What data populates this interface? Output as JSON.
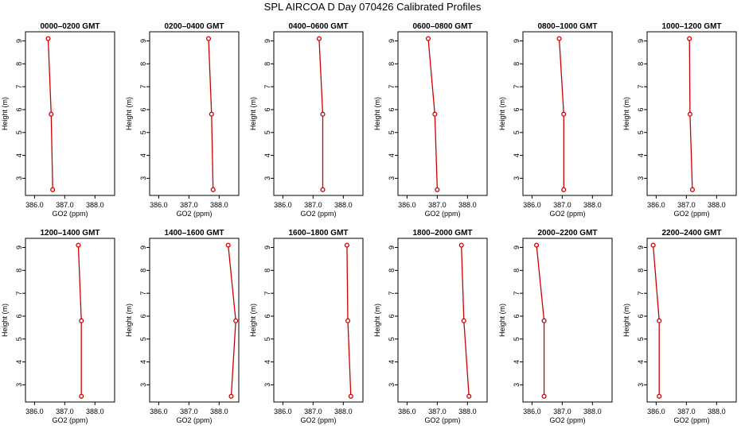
{
  "title": "SPL AIRCOA D  Day 070426  Calibrated Profiles",
  "colors": {
    "series": "#cc0000",
    "axis": "#000000",
    "background": "#ffffff"
  },
  "chart_data": [
    {
      "type": "line",
      "title": "0000–0200 GMT",
      "xlabel": "GO2 (ppm)",
      "ylabel": "Height (m)",
      "xlim": [
        385.7,
        388.65
      ],
      "ylim": [
        2.25,
        9.4
      ],
      "xticks": [
        "386.0",
        "387.0",
        "388.0"
      ],
      "xtick_values": [
        386.0,
        387.0,
        388.0
      ],
      "yticks": [
        "3",
        "4",
        "5",
        "6",
        "7",
        "8",
        "9"
      ],
      "ytick_values": [
        3,
        4,
        5,
        6,
        7,
        8,
        9
      ],
      "grid": false,
      "points": [
        {
          "x": 386.45,
          "y": 9.1
        },
        {
          "x": 386.55,
          "y": 5.8
        },
        {
          "x": 386.6,
          "y": 2.5
        }
      ]
    },
    {
      "type": "line",
      "title": "0200–0400 GMT",
      "xlabel": "GO2 (ppm)",
      "ylabel": "Height (m)",
      "xlim": [
        385.7,
        388.65
      ],
      "ylim": [
        2.25,
        9.4
      ],
      "xticks": [
        "386.0",
        "387.0",
        "388.0"
      ],
      "xtick_values": [
        386.0,
        387.0,
        388.0
      ],
      "yticks": [
        "3",
        "4",
        "5",
        "6",
        "7",
        "8",
        "9"
      ],
      "ytick_values": [
        3,
        4,
        5,
        6,
        7,
        8,
        9
      ],
      "grid": false,
      "points": [
        {
          "x": 387.65,
          "y": 9.1
        },
        {
          "x": 387.75,
          "y": 5.8
        },
        {
          "x": 387.8,
          "y": 2.5
        }
      ]
    },
    {
      "type": "line",
      "title": "0400–0600 GMT",
      "xlabel": "GO2 (ppm)",
      "ylabel": "Height (m)",
      "xlim": [
        385.7,
        388.65
      ],
      "ylim": [
        2.25,
        9.4
      ],
      "xticks": [
        "386.0",
        "387.0",
        "388.0"
      ],
      "xtick_values": [
        386.0,
        387.0,
        388.0
      ],
      "yticks": [
        "3",
        "4",
        "5",
        "6",
        "7",
        "8",
        "9"
      ],
      "ytick_values": [
        3,
        4,
        5,
        6,
        7,
        8,
        9
      ],
      "grid": false,
      "points": [
        {
          "x": 387.2,
          "y": 9.1
        },
        {
          "x": 387.32,
          "y": 5.8
        },
        {
          "x": 387.32,
          "y": 2.5
        }
      ]
    },
    {
      "type": "line",
      "title": "0600–0800 GMT",
      "xlabel": "GO2 (ppm)",
      "ylabel": "Height (m)",
      "xlim": [
        385.7,
        388.65
      ],
      "ylim": [
        2.25,
        9.4
      ],
      "xticks": [
        "386.0",
        "387.0",
        "388.0"
      ],
      "xtick_values": [
        386.0,
        387.0,
        388.0
      ],
      "yticks": [
        "3",
        "4",
        "5",
        "6",
        "7",
        "8",
        "9"
      ],
      "ytick_values": [
        3,
        4,
        5,
        6,
        7,
        8,
        9
      ],
      "grid": false,
      "points": [
        {
          "x": 386.7,
          "y": 9.1
        },
        {
          "x": 386.92,
          "y": 5.8
        },
        {
          "x": 387.0,
          "y": 2.5
        }
      ]
    },
    {
      "type": "line",
      "title": "0800–1000 GMT",
      "xlabel": "GO2 (ppm)",
      "ylabel": "Height (m)",
      "xlim": [
        385.7,
        388.65
      ],
      "ylim": [
        2.25,
        9.4
      ],
      "xticks": [
        "386.0",
        "387.0",
        "388.0"
      ],
      "xtick_values": [
        386.0,
        387.0,
        388.0
      ],
      "yticks": [
        "3",
        "4",
        "5",
        "6",
        "7",
        "8",
        "9"
      ],
      "ytick_values": [
        3,
        4,
        5,
        6,
        7,
        8,
        9
      ],
      "grid": false,
      "points": [
        {
          "x": 386.9,
          "y": 9.1
        },
        {
          "x": 387.05,
          "y": 5.8
        },
        {
          "x": 387.05,
          "y": 2.5
        }
      ]
    },
    {
      "type": "line",
      "title": "1000–1200 GMT",
      "xlabel": "GO2 (ppm)",
      "ylabel": "Height (m)",
      "xlim": [
        385.7,
        388.65
      ],
      "ylim": [
        2.25,
        9.4
      ],
      "xticks": [
        "386.0",
        "387.0",
        "388.0"
      ],
      "xtick_values": [
        386.0,
        387.0,
        388.0
      ],
      "yticks": [
        "3",
        "4",
        "5",
        "6",
        "7",
        "8",
        "9"
      ],
      "ytick_values": [
        3,
        4,
        5,
        6,
        7,
        8,
        9
      ],
      "grid": false,
      "points": [
        {
          "x": 387.1,
          "y": 9.1
        },
        {
          "x": 387.12,
          "y": 5.8
        },
        {
          "x": 387.2,
          "y": 2.5
        }
      ]
    },
    {
      "type": "line",
      "title": "1200–1400 GMT",
      "xlabel": "GO2 (ppm)",
      "ylabel": "Height (m)",
      "xlim": [
        385.7,
        388.65
      ],
      "ylim": [
        2.25,
        9.4
      ],
      "xticks": [
        "386.0",
        "387.0",
        "388.0"
      ],
      "xtick_values": [
        386.0,
        387.0,
        388.0
      ],
      "yticks": [
        "3",
        "4",
        "5",
        "6",
        "7",
        "8",
        "9"
      ],
      "ytick_values": [
        3,
        4,
        5,
        6,
        7,
        8,
        9
      ],
      "grid": false,
      "points": [
        {
          "x": 387.45,
          "y": 9.1
        },
        {
          "x": 387.55,
          "y": 5.8
        },
        {
          "x": 387.55,
          "y": 2.5
        }
      ]
    },
    {
      "type": "line",
      "title": "1400–1600 GMT",
      "xlabel": "GO2 (ppm)",
      "ylabel": "Height (m)",
      "xlim": [
        385.7,
        388.65
      ],
      "ylim": [
        2.25,
        9.4
      ],
      "xticks": [
        "386.0",
        "387.0",
        "388.0"
      ],
      "xtick_values": [
        386.0,
        387.0,
        388.0
      ],
      "yticks": [
        "3",
        "4",
        "5",
        "6",
        "7",
        "8",
        "9"
      ],
      "ytick_values": [
        3,
        4,
        5,
        6,
        7,
        8,
        9
      ],
      "grid": false,
      "points": [
        {
          "x": 388.3,
          "y": 9.1
        },
        {
          "x": 388.55,
          "y": 5.8
        },
        {
          "x": 388.4,
          "y": 2.5
        }
      ]
    },
    {
      "type": "line",
      "title": "1600–1800 GMT",
      "xlabel": "GO2 (ppm)",
      "ylabel": "Height (m)",
      "xlim": [
        385.7,
        388.65
      ],
      "ylim": [
        2.25,
        9.4
      ],
      "xticks": [
        "386.0",
        "387.0",
        "388.0"
      ],
      "xtick_values": [
        386.0,
        387.0,
        388.0
      ],
      "yticks": [
        "3",
        "4",
        "5",
        "6",
        "7",
        "8",
        "9"
      ],
      "ytick_values": [
        3,
        4,
        5,
        6,
        7,
        8,
        9
      ],
      "grid": false,
      "points": [
        {
          "x": 388.12,
          "y": 9.1
        },
        {
          "x": 388.15,
          "y": 5.8
        },
        {
          "x": 388.25,
          "y": 2.5
        }
      ]
    },
    {
      "type": "line",
      "title": "1800–2000 GMT",
      "xlabel": "GO2 (ppm)",
      "ylabel": "Height (m)",
      "xlim": [
        385.7,
        388.65
      ],
      "ylim": [
        2.25,
        9.4
      ],
      "xticks": [
        "386.0",
        "387.0",
        "388.0"
      ],
      "xtick_values": [
        386.0,
        387.0,
        388.0
      ],
      "yticks": [
        "3",
        "4",
        "5",
        "6",
        "7",
        "8",
        "9"
      ],
      "ytick_values": [
        3,
        4,
        5,
        6,
        7,
        8,
        9
      ],
      "grid": false,
      "points": [
        {
          "x": 387.8,
          "y": 9.1
        },
        {
          "x": 387.88,
          "y": 5.8
        },
        {
          "x": 388.05,
          "y": 2.5
        }
      ]
    },
    {
      "type": "line",
      "title": "2000–2200 GMT",
      "xlabel": "GO2 (ppm)",
      "ylabel": "Height (m)",
      "xlim": [
        385.7,
        388.65
      ],
      "ylim": [
        2.25,
        9.4
      ],
      "xticks": [
        "386.0",
        "387.0",
        "388.0"
      ],
      "xtick_values": [
        386.0,
        387.0,
        388.0
      ],
      "yticks": [
        "3",
        "4",
        "5",
        "6",
        "7",
        "8",
        "9"
      ],
      "ytick_values": [
        3,
        4,
        5,
        6,
        7,
        8,
        9
      ],
      "grid": false,
      "points": [
        {
          "x": 386.15,
          "y": 9.1
        },
        {
          "x": 386.4,
          "y": 5.8
        },
        {
          "x": 386.4,
          "y": 2.5
        }
      ]
    },
    {
      "type": "line",
      "title": "2200–2400 GMT",
      "xlabel": "GO2 (ppm)",
      "ylabel": "Height (m)",
      "xlim": [
        385.7,
        388.65
      ],
      "ylim": [
        2.25,
        9.4
      ],
      "xticks": [
        "386.0",
        "387.0",
        "388.0"
      ],
      "xtick_values": [
        386.0,
        387.0,
        388.0
      ],
      "yticks": [
        "3",
        "4",
        "5",
        "6",
        "7",
        "8",
        "9"
      ],
      "ytick_values": [
        3,
        4,
        5,
        6,
        7,
        8,
        9
      ],
      "grid": false,
      "points": [
        {
          "x": 385.9,
          "y": 9.1
        },
        {
          "x": 386.1,
          "y": 5.8
        },
        {
          "x": 386.1,
          "y": 2.5
        }
      ]
    }
  ]
}
